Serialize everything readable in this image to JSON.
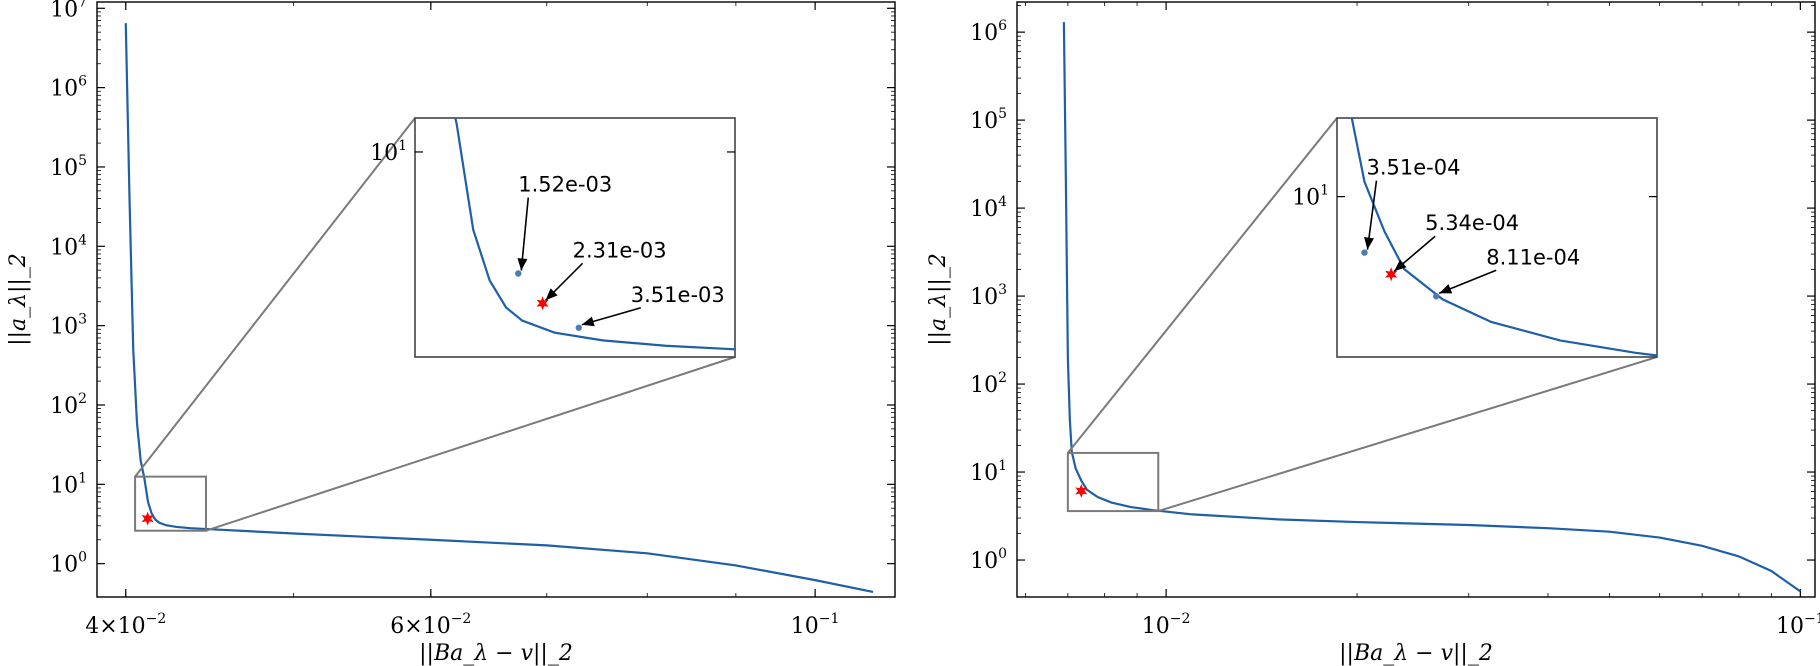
{
  "colors": {
    "curve": "#1f5fa8",
    "opt_marker": "#ff0000",
    "zoom_box": "#7a7a7a",
    "points": "#4a7db5"
  },
  "chart_data": [
    {
      "type": "line",
      "title": "",
      "xlabel": "||Ba_λ − v||_2",
      "ylabel": "||a_λ||_2",
      "xscale": "log",
      "yscale": "log",
      "xlim": [
        0.0385,
        0.1112
      ],
      "ylim": [
        0.38,
        12000000
      ],
      "xticks": [
        {
          "value": 0.04,
          "label": "4×10",
          "exp": "−2"
        },
        {
          "value": 0.06,
          "label": "6×10",
          "exp": "−2"
        },
        {
          "value": 0.1,
          "label": "10",
          "exp": "−1"
        }
      ],
      "yticks": [
        {
          "value": 1,
          "label": "10",
          "exp": "0"
        },
        {
          "value": 10,
          "label": "10",
          "exp": "1"
        },
        {
          "value": 100,
          "label": "10",
          "exp": "2"
        },
        {
          "value": 1000,
          "label": "10",
          "exp": "3"
        },
        {
          "value": 10000,
          "label": "10",
          "exp": "4"
        },
        {
          "value": 100000,
          "label": "10",
          "exp": "5"
        },
        {
          "value": 1000000,
          "label": "10",
          "exp": "6"
        },
        {
          "value": 10000000,
          "label": "10",
          "exp": "7"
        }
      ],
      "series": [
        {
          "x": [
            0.04,
            0.0402,
            0.0404,
            0.0406,
            0.0408,
            0.041,
            0.0412,
            0.0414,
            0.0416,
            0.0418,
            0.0422,
            0.0428,
            0.0436,
            0.045,
            0.05,
            0.06,
            0.07,
            0.08,
            0.09,
            0.1,
            0.108
          ],
          "y": [
            6500000,
            40000,
            500,
            60,
            20,
            12,
            6.0,
            4.3,
            3.6,
            3.3,
            3.05,
            2.9,
            2.8,
            2.7,
            2.4,
            2.0,
            1.7,
            1.35,
            0.95,
            0.62,
            0.44
          ]
        }
      ],
      "optimum": {
        "x": 0.04118,
        "y": 3.7
      },
      "zoom_region": {
        "x": [
          0.0405,
          0.0445
        ],
        "y": [
          2.6,
          12.5
        ]
      },
      "inset": {
        "ytick": {
          "value": 10,
          "label": "10",
          "exp": "1"
        },
        "annotations": [
          {
            "label": "1.52e-03",
            "x": 0.04175,
            "y": 4.5
          },
          {
            "label": "2.31e-03",
            "x": 0.04205,
            "y": 3.7
          },
          {
            "label": "3.51e-03",
            "x": 0.0425,
            "y": 3.15
          }
        ]
      }
    },
    {
      "type": "line",
      "title": "",
      "xlabel": "||Ba_λ − v||_2",
      "ylabel": "||a_λ||_2",
      "xscale": "log",
      "yscale": "log",
      "xlim": [
        0.00582,
        0.10546
      ],
      "ylim": [
        0.38,
        2200000
      ],
      "xticks": [
        {
          "value": 0.01,
          "label": "10",
          "exp": "−2"
        },
        {
          "value": 0.1,
          "label": "10",
          "exp": "−1"
        }
      ],
      "yticks": [
        {
          "value": 1,
          "label": "10",
          "exp": "0"
        },
        {
          "value": 10,
          "label": "10",
          "exp": "1"
        },
        {
          "value": 100,
          "label": "10",
          "exp": "2"
        },
        {
          "value": 1000,
          "label": "10",
          "exp": "3"
        },
        {
          "value": 10000,
          "label": "10",
          "exp": "4"
        },
        {
          "value": 100000,
          "label": "10",
          "exp": "5"
        },
        {
          "value": 1000000,
          "label": "10",
          "exp": "6"
        }
      ],
      "series": [
        {
          "x": [
            0.0069,
            0.00695,
            0.007,
            0.00705,
            0.0071,
            0.0072,
            0.00735,
            0.0075,
            0.0078,
            0.0082,
            0.0088,
            0.0095,
            0.011,
            0.015,
            0.02,
            0.03,
            0.04,
            0.05,
            0.06,
            0.07,
            0.08,
            0.09,
            0.1
          ],
          "y": [
            1300000,
            20000,
            200,
            40,
            17,
            11,
            8.0,
            6.3,
            5.2,
            4.5,
            4.0,
            3.7,
            3.3,
            2.9,
            2.7,
            2.5,
            2.3,
            2.1,
            1.8,
            1.45,
            1.1,
            0.75,
            0.44
          ]
        }
      ],
      "optimum": {
        "x": 0.00735,
        "y": 6.1
      },
      "zoom_region": {
        "x": [
          0.007,
          0.00972
        ],
        "y": [
          3.6,
          16.5
        ]
      },
      "inset": {
        "ytick": {
          "value": 10,
          "label": "10",
          "exp": "1"
        },
        "annotations": [
          {
            "label": "3.51e-04",
            "x": 0.0072,
            "y": 7.0
          },
          {
            "label": "5.34e-04",
            "x": 0.0074,
            "y": 6.1
          },
          {
            "label": "8.11e-04",
            "x": 0.00775,
            "y": 5.3
          }
        ]
      }
    }
  ]
}
